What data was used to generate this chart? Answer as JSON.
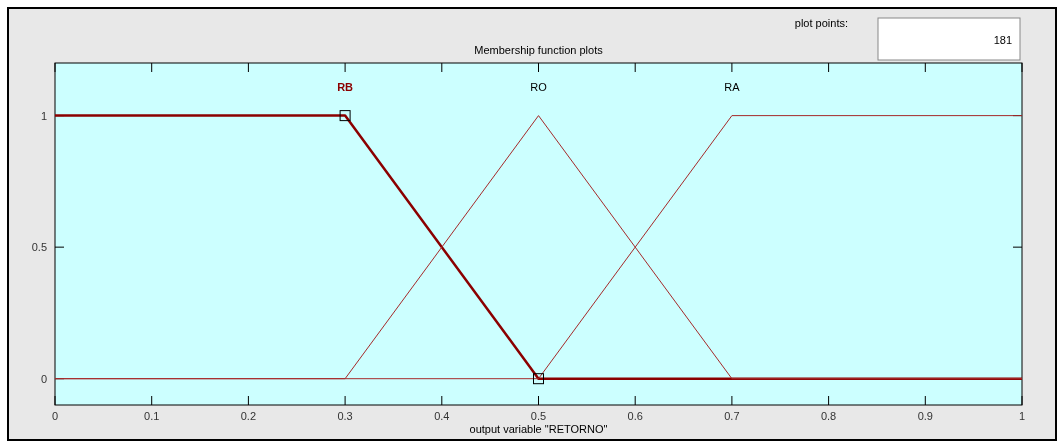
{
  "chart_data": {
    "type": "line",
    "title": "Membership function plots",
    "xlabel": "output variable \"RETORNO\"",
    "xlim": [
      0,
      1
    ],
    "xticks": [
      0,
      0.1,
      0.2,
      0.3,
      0.4,
      0.5,
      0.6,
      0.7,
      0.8,
      0.9,
      1
    ],
    "ylim": [
      -0.1,
      1.2
    ],
    "yticks": [
      0,
      0.5,
      1
    ],
    "grid": false,
    "annotations": [
      "plot points:",
      "181"
    ],
    "series": [
      {
        "name": "RB",
        "color": "#8b0000",
        "x": [
          0,
          0.3,
          0.5,
          1
        ],
        "values": [
          1,
          1,
          0,
          0
        ]
      },
      {
        "name": "RO",
        "color": "#a52a2a",
        "x": [
          0,
          0.3,
          0.5,
          0.7,
          1
        ],
        "values": [
          0,
          0,
          1,
          0,
          0
        ]
      },
      {
        "name": "RA",
        "color": "#a52a2a",
        "x": [
          0,
          0.5,
          0.7,
          1
        ],
        "values": [
          0,
          0,
          1,
          1
        ]
      },
      {
        "type": "scatter",
        "color": "#000000",
        "marker": "square",
        "x": [
          0.3,
          0.5
        ],
        "values": [
          1,
          0
        ]
      }
    ]
  }
}
